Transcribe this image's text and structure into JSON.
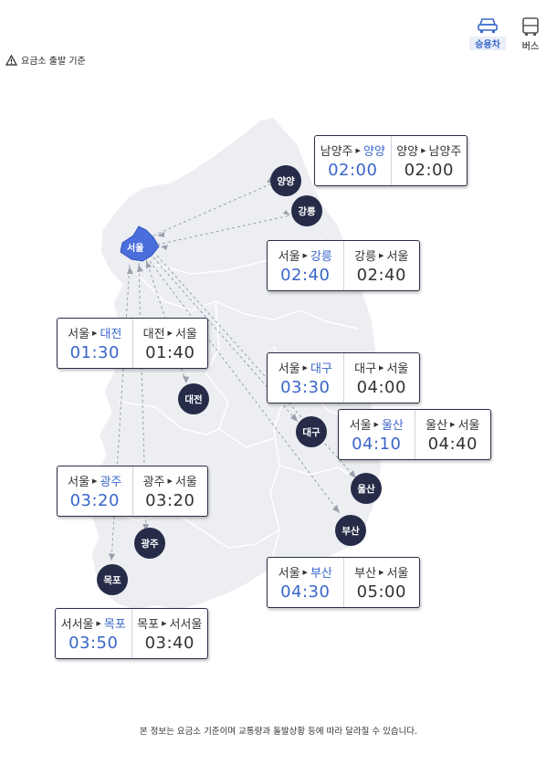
{
  "modes": [
    {
      "label": "승용차",
      "icon": "car-icon",
      "active": true
    },
    {
      "label": "버스",
      "icon": "bus-icon",
      "active": false
    }
  ],
  "notice": {
    "icon": "warning-icon",
    "text": "요금소 출발 기준"
  },
  "seoul_label": "서울",
  "cities": {
    "yangyang": "양양",
    "gangneung": "강릉",
    "daejeon": "대전",
    "daegu": "대구",
    "ulsan": "울산",
    "gwangju": "광주",
    "busan": "부산",
    "mokpo": "목포"
  },
  "routes": {
    "yangyang": {
      "out": {
        "from": "남양주",
        "to": "양양",
        "time": "02:00"
      },
      "back": {
        "from": "양양",
        "to": "남양주",
        "time": "02:00"
      }
    },
    "gangneung": {
      "out": {
        "from": "서울",
        "to": "강릉",
        "time": "02:40"
      },
      "back": {
        "from": "강릉",
        "to": "서울",
        "time": "02:40"
      }
    },
    "daejeon": {
      "out": {
        "from": "서울",
        "to": "대전",
        "time": "01:30"
      },
      "back": {
        "from": "대전",
        "to": "서울",
        "time": "01:40"
      }
    },
    "daegu": {
      "out": {
        "from": "서울",
        "to": "대구",
        "time": "03:30"
      },
      "back": {
        "from": "대구",
        "to": "서울",
        "time": "04:00"
      }
    },
    "ulsan": {
      "out": {
        "from": "서울",
        "to": "울산",
        "time": "04:10"
      },
      "back": {
        "from": "울산",
        "to": "서울",
        "time": "04:40"
      }
    },
    "gwangju": {
      "out": {
        "from": "서울",
        "to": "광주",
        "time": "03:20"
      },
      "back": {
        "from": "광주",
        "to": "서울",
        "time": "03:20"
      }
    },
    "busan": {
      "out": {
        "from": "서울",
        "to": "부산",
        "time": "04:30"
      },
      "back": {
        "from": "부산",
        "to": "서울",
        "time": "05:00"
      }
    },
    "mokpo": {
      "out": {
        "from": "서서울",
        "to": "목포",
        "time": "03:50"
      },
      "back": {
        "from": "목포",
        "to": "서서울",
        "time": "03:40"
      }
    }
  },
  "footer": "본 정보는 요금소 기준이며 교통량과 돌발상황 등에 따라 달라질 수 있습니다.",
  "colors": {
    "accent": "#3a66c9",
    "marker": "#262c48",
    "map": "#eceef1",
    "seoul": "#4a6fdc"
  }
}
